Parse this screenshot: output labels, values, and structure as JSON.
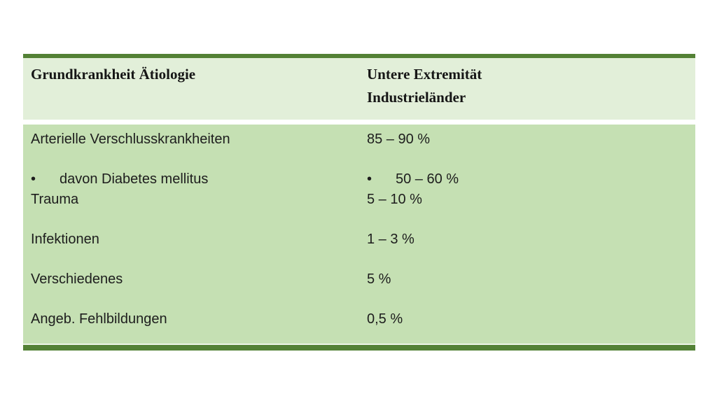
{
  "table": {
    "header": {
      "col1": "Grundkrankheit Ätiologie",
      "col2_line1": "Untere Extremität",
      "col2_line2": "Industrieländer"
    },
    "rows": [
      {
        "label": "Arterielle Verschlusskrankheiten",
        "value": "85 – 90 %"
      },
      {
        "bullet": "•",
        "label": "davon Diabetes mellitus",
        "value": "50 – 60 %"
      },
      {
        "label": "Trauma",
        "value": "5 – 10 %"
      },
      {
        "label": "Infektionen",
        "value": "1 – 3 %"
      },
      {
        "label": "Verschiedenes",
        "value": "5 %"
      },
      {
        "label": "Angeb. Fehlbildungen",
        "value": "0,5 %"
      }
    ],
    "colors": {
      "accent_dark_green": "#538135",
      "header_background": "#e2efd9",
      "body_background": "#c5e0b3",
      "page_background": "#ffffff",
      "text": "#1d1d1d"
    }
  }
}
